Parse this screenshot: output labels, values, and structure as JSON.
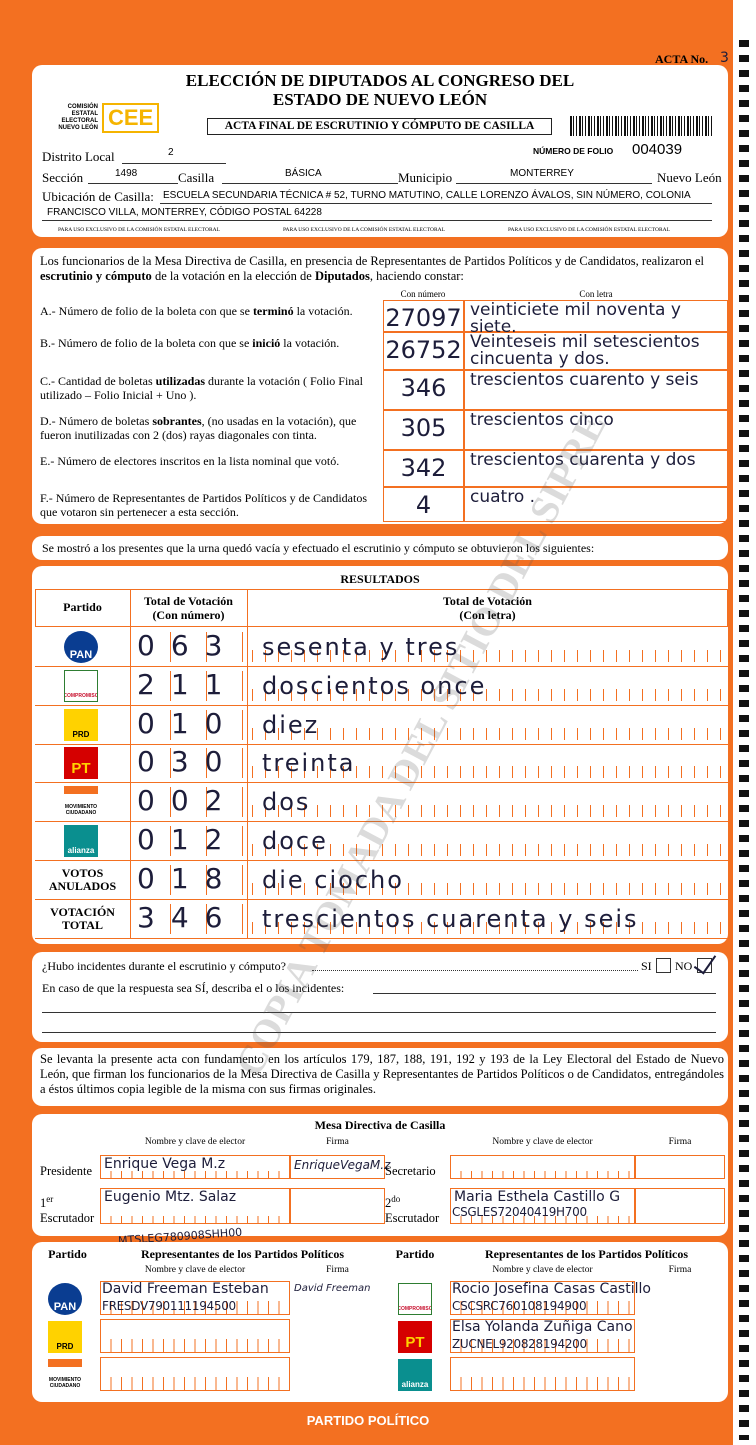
{
  "header": {
    "acta_label": "ACTA No.",
    "acta_number": "3",
    "title_lines": [
      "ELECCIÓN DE DIPUTADOS AL CONGRESO DEL",
      "ESTADO DE NUEVO LEÓN"
    ],
    "logo_caption": [
      "COMISIÓN",
      "ESTATAL",
      "ELECTORAL",
      "NUEVO LEÓN"
    ],
    "logo_text": "CEE",
    "subtitle": "ACTA FINAL DE ESCRUTINIO Y CÓMPUTO DE CASILLA",
    "folio_label": "NÚMERO DE FOLIO",
    "folio": "004039"
  },
  "fields": {
    "distrito_label": "Distrito Local",
    "distrito": "2",
    "seccion_label": "Sección",
    "seccion": "1498",
    "casilla_label": "Casilla",
    "casilla": "BÁSICA",
    "municipio_label": "Municipio",
    "municipio": "MONTERREY",
    "estado": "Nuevo León",
    "ubicacion_label": "Ubicación de Casilla:",
    "ubicacion_lines": [
      "ESCUELA SECUNDARIA TÉCNICA # 52, TURNO MATUTINO, CALLE LORENZO ÁVALOS, SIN NÚMERO, COLONIA",
      "FRANCISCO VILLA, MONTERREY, CÓDIGO POSTAL 64228"
    ],
    "exclusive_notice": [
      "PARA USO EXCLUSIVO DE LA COMISIÓN ESTATAL ELECTORAL",
      "PARA USO EXCLUSIVO DE LA COMISIÓN ESTATAL ELECTORAL",
      "PARA USO EXCLUSIVO DE LA COMISIÓN ESTATAL ELECTORAL"
    ]
  },
  "constancia": {
    "intro": [
      "Los funcionarios de la Mesa Directiva de Casilla, en presencia de Representantes de Partidos Políticos y de Candidatos, realizaron el ",
      "escrutinio y cómputo",
      " de la votación en la elección de ",
      "Diputados",
      ", haciendo constar:"
    ],
    "number_header": "Con número",
    "letter_header": "Con letra",
    "items": [
      {
        "label": [
          "A.- Número de folio de la boleta con que se ",
          "terminó",
          " la votación."
        ],
        "number": "27097",
        "letter": "veinticiete mil noventa y siete."
      },
      {
        "label": [
          "B.- Número de folio de la boleta con que se ",
          "inició",
          " la votación."
        ],
        "number": "26752",
        "letter": "Veinteseis mil setescientos cincuenta y dos."
      },
      {
        "label": [
          "C.- Cantidad de boletas ",
          "utilizadas",
          " durante la votación ( Folio Final utilizado – Folio Inicial + Uno )."
        ],
        "number": "346",
        "letter": "trescientos cuarento y seis"
      },
      {
        "label": [
          "D.- Número de boletas ",
          "sobrantes",
          ", (no usadas en la votación), que fueron inutilizadas con 2 (dos) rayas diagonales con tinta."
        ],
        "number": "305",
        "letter": "trescientos cinco"
      },
      {
        "label": [
          "E.- Número de electores inscritos en la lista nominal que votó."
        ],
        "number": "342",
        "letter": "trescientos cuarenta y dos"
      },
      {
        "label": [
          "F.- Número de Representantes de Partidos Políticos y de Candidatos que votaron sin pertenecer a esta sección."
        ],
        "number": "4",
        "letter": "cuatro ."
      }
    ]
  },
  "statement": "Se mostró a los presentes que la urna quedó vacía y efectuado el escrutinio y cómputo se obtuvieron los siguientes:",
  "results": {
    "title": "RESULTADOS",
    "party_header": "Partido",
    "number_header": [
      "Total de Votación",
      "(Con número)"
    ],
    "letter_header": [
      "Total de Votación",
      "(Con letra)"
    ],
    "rows": [
      {
        "logo": "PAN",
        "number": "063",
        "letter": "sesenta y tres"
      },
      {
        "logo": "COMPROMISO",
        "number": "211",
        "letter": "doscientos once"
      },
      {
        "logo": "PRD",
        "number": "010",
        "letter": "diez"
      },
      {
        "logo": "PT",
        "number": "030",
        "letter": "treinta"
      },
      {
        "logo": "MOVIMIENTO CIUDADANO",
        "number": "002",
        "letter": "dos"
      },
      {
        "logo": "alianza",
        "number": "012",
        "letter": "doce"
      },
      {
        "label": "VOTOS ANULADOS",
        "number": "018",
        "letter": "die ciocho"
      },
      {
        "label": "VOTACIÓN TOTAL",
        "number": "346",
        "letter": "trescientos cuarenta y seis"
      }
    ]
  },
  "incidents": {
    "question": "¿Hubo incidentes durante el escrutinio y cómputo?",
    "yes": "SI",
    "no": "NO",
    "describe": "En caso de que la respuesta sea SÍ, describa el o los incidentes:"
  },
  "legal": "Se levanta la presente acta con fundamento en los artículos 179, 187, 188, 191, 192 y 193 de la Ley Electoral del Estado de Nuevo León, que firman los funcionarios de la Mesa Directiva de Casilla y Representantes de Partidos Políticos o de Candidatos, entregándoles a éstos últimos copia legible de la misma con sus firmas originales.",
  "mesa": {
    "title": "Mesa Directiva de Casilla",
    "name_header": "Nombre y clave de elector",
    "signature_header": "Firma",
    "officials": [
      {
        "role": [
          "Presidente"
        ],
        "name": "Enrique Vega M.z",
        "signature": "EnriqueVegaM.z"
      },
      {
        "role": [
          "Secretario"
        ]
      },
      {
        "role": [
          "1",
          "er",
          "Escrutador"
        ],
        "name": "Eugenio Mtz. Salaz"
      },
      {
        "role": [
          "2",
          "do",
          "Escrutador"
        ],
        "name": "Maria Esthela Castillo G",
        "clave": "CSGLES72040419H700"
      }
    ],
    "note": "MTSLEG780908SHH00"
  },
  "representatives": {
    "party_header": "Partido",
    "title": "Representantes de los Partidos Políticos",
    "name_header": "Nombre y clave de elector",
    "signature_header": "Firma",
    "left": [
      {
        "logo": "PAN",
        "name": "David Freeman Esteban",
        "clave": "FRESDV790111194500",
        "signature": "David Freeman"
      },
      {
        "logo": "PRD"
      },
      {
        "logo": "MOVIMIENTO CIUDADANO"
      }
    ],
    "right": [
      {
        "logo": "COMPROMISO",
        "name": "Rocio Josefina Casas Castillo",
        "clave": "CSCSRC760108194900"
      },
      {
        "logo": "PT",
        "name": "Elsa Yolanda Zuñiga Cano",
        "clave": "ZUCNEL920828194200"
      },
      {
        "logo": "alianza"
      }
    ]
  },
  "footer": "PARTIDO POLÍTICO",
  "watermark": "COPIA TOMADA DEL SITIO DEL SIPRE"
}
